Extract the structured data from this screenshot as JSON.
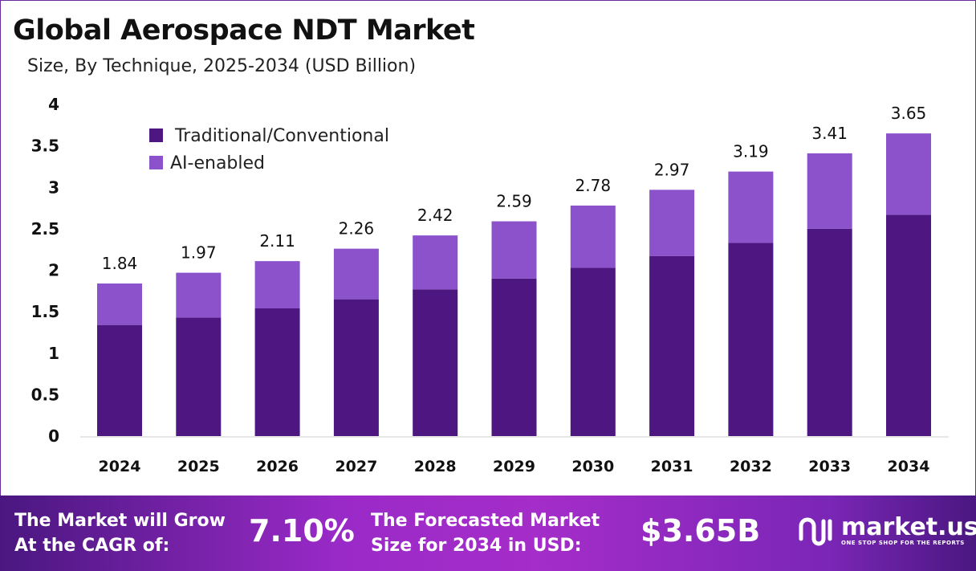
{
  "title": "Global Aerospace NDT Market",
  "subtitle": "Size, By Technique, 2025-2034 (USD Billion)",
  "chart_data": {
    "type": "bar",
    "stacked": true,
    "categories": [
      "2024",
      "2025",
      "2026",
      "2027",
      "2028",
      "2029",
      "2030",
      "2031",
      "2032",
      "2033",
      "2034"
    ],
    "series": [
      {
        "name": "Traditional/Conventional",
        "color": "#4e1681",
        "values": [
          1.34,
          1.43,
          1.54,
          1.65,
          1.77,
          1.9,
          2.03,
          2.17,
          2.33,
          2.5,
          2.67
        ]
      },
      {
        "name": "AI-enabled",
        "color": "#8c52cc",
        "values": [
          0.5,
          0.54,
          0.57,
          0.61,
          0.65,
          0.69,
          0.75,
          0.8,
          0.86,
          0.91,
          0.98
        ]
      }
    ],
    "totals": [
      "1.84",
      "1.97",
      "2.11",
      "2.26",
      "2.42",
      "2.59",
      "2.78",
      "2.97",
      "3.19",
      "3.41",
      "3.65"
    ],
    "ylim": [
      0,
      4
    ],
    "yticks": [
      "0",
      "0.5",
      "1",
      "1.5",
      "2",
      "2.5",
      "3",
      "3.5",
      "4"
    ],
    "grid": false,
    "legend_position": "top-left"
  },
  "footer": {
    "cagr_label_1": "The Market will Grow",
    "cagr_label_2": "At the CAGR of:",
    "cagr_value": "7.10%",
    "forecast_label_1": "The Forecasted Market",
    "forecast_label_2": "Size for 2034 in USD:",
    "forecast_value": "$3.65B",
    "logo_text": "market.us",
    "logo_tagline": "ONE STOP SHOP FOR THE REPORTS"
  }
}
